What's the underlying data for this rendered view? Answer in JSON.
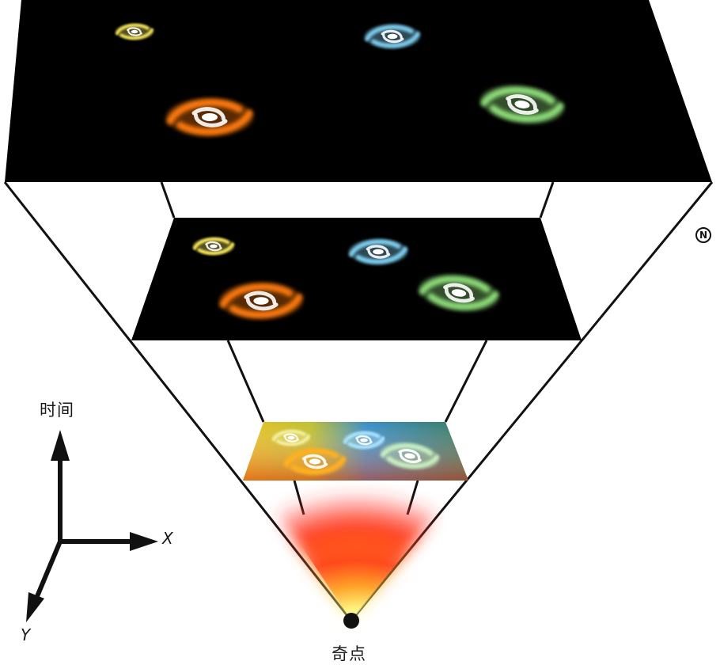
{
  "labels": {
    "time_axis": "时间",
    "x_axis": "X",
    "y_axis": "Y",
    "singularity": "奇点",
    "corner_mark": "N"
  },
  "colors": {
    "space_slice": "#000000",
    "galaxy_yellow": "#f4e45a",
    "galaxy_blue": "#7fd0f2",
    "galaxy_orange": "#ff7a10",
    "galaxy_green": "#8fe07a",
    "fireball_red": "#ff2a1a",
    "fireball_core": "#ffff90"
  },
  "icons": [
    "spiral-galaxy-icon",
    "singularity-dot-icon",
    "axis-arrow-icon"
  ]
}
